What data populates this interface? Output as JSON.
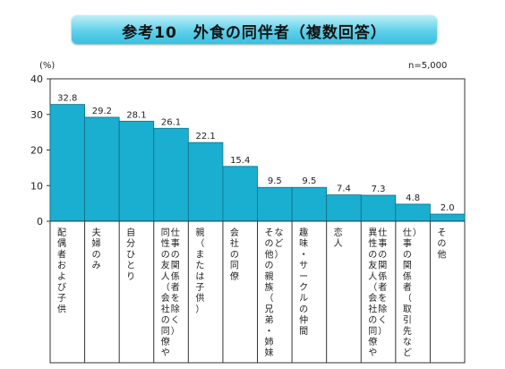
{
  "banner_title": "参考10　外食の同伴者（複数回答）",
  "chart_data": {
    "type": "bar",
    "unit_label": "(%)",
    "note": "n=5,000",
    "ylim": [
      0,
      40
    ],
    "yticks": [
      0,
      10,
      20,
      30,
      40
    ],
    "grid": false,
    "bar_color": "#1aaed0",
    "categories": [
      "配偶者および子供",
      "夫婦のみ",
      "自分ひとり",
      "同性の友人（会社の同僚や仕事の関係者を除く）",
      "親（または子供）",
      "会社の同僚",
      "その他の親族（兄弟・姉妹など）",
      "趣味・サークルの仲間",
      "恋人",
      "異性の友人（会社の同僚や仕事の関係者を除く）",
      "仕事の関係者（取引先など）",
      "その他"
    ],
    "values": [
      32.8,
      29.2,
      28.1,
      26.1,
      22.1,
      15.4,
      9.5,
      9.5,
      7.4,
      7.3,
      4.8,
      2.0
    ],
    "value_labels": [
      "32.8",
      "29.2",
      "28.1",
      "26.1",
      "22.1",
      "15.4",
      "9.5",
      "9.5",
      "7.4",
      "7.3",
      "4.8",
      "2.0"
    ]
  }
}
